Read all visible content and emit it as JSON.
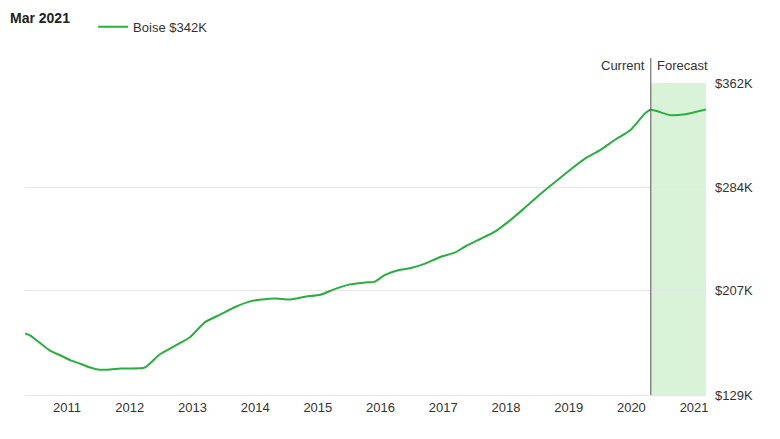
{
  "chart_data": {
    "type": "line",
    "title": "Mar 2021",
    "annotations": [
      "Current",
      "Forecast"
    ],
    "forecast_start": 2020.31,
    "x": [
      2010.33,
      2010.41,
      2010.57,
      2010.73,
      2010.89,
      2011.05,
      2011.21,
      2011.37,
      2011.49,
      2011.69,
      2011.85,
      2012.24,
      2012.48,
      2012.72,
      2012.96,
      2013.2,
      2013.44,
      2013.68,
      2013.92,
      2014.11,
      2014.32,
      2014.56,
      2014.8,
      2015.04,
      2015.27,
      2015.51,
      2015.75,
      2015.91,
      2016.07,
      2016.28,
      2016.47,
      2016.71,
      2016.95,
      2017.19,
      2017.35,
      2017.59,
      2017.83,
      2018.07,
      2018.3,
      2018.54,
      2018.78,
      2019.02,
      2019.26,
      2019.5,
      2019.74,
      2019.98,
      2020.22,
      2020.31,
      2020.62,
      2020.86,
      2021.19
    ],
    "series": [
      {
        "name": "Boise $342K",
        "color": "#2aae3f",
        "values": [
          174900,
          173500,
          167800,
          162200,
          158700,
          155100,
          152300,
          149500,
          148100,
          148100,
          148800,
          149500,
          159400,
          165700,
          172100,
          183400,
          189000,
          194700,
          198900,
          200300,
          201000,
          200300,
          202400,
          203800,
          208100,
          211600,
          213000,
          213700,
          218700,
          222200,
          223600,
          227100,
          232100,
          235500,
          239900,
          245500,
          251200,
          259600,
          268800,
          278700,
          287900,
          297000,
          305500,
          311900,
          319600,
          326700,
          339400,
          342000,
          338000,
          338700,
          342200
        ]
      }
    ],
    "xlim": [
      2010.33,
      2021.19
    ],
    "xticks": [
      2011,
      2012,
      2013,
      2014,
      2015,
      2016,
      2017,
      2018,
      2019,
      2020,
      2021
    ],
    "ylim": [
      129000,
      362000
    ],
    "yticks": [
      {
        "value": 129000,
        "label": "$129K"
      },
      {
        "value": 207000,
        "label": "$207K"
      },
      {
        "value": 284000,
        "label": "$284K"
      },
      {
        "value": 362000,
        "label": "$362K"
      }
    ],
    "grid": true,
    "legend": "top left"
  }
}
